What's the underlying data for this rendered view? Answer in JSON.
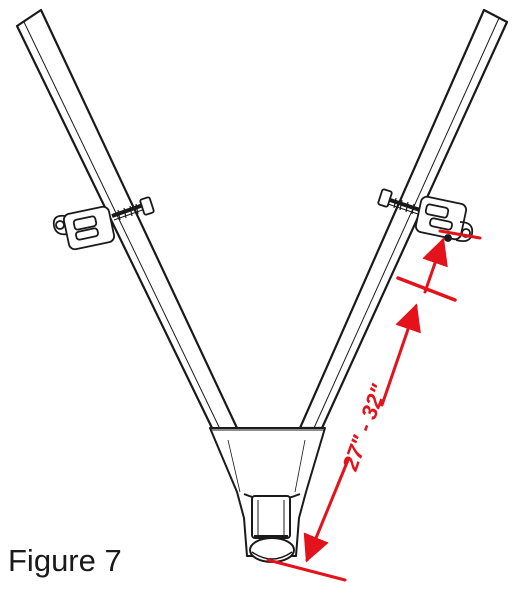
{
  "figure": {
    "caption": "Figure 7",
    "dimension_label": "27\" - 32\""
  },
  "colors": {
    "line": "#1a1a1a",
    "dimension": "#e3121b",
    "background": "#ffffff"
  },
  "icons": [
    "clamp-bracket-icon",
    "dimension-arrow-icon"
  ]
}
